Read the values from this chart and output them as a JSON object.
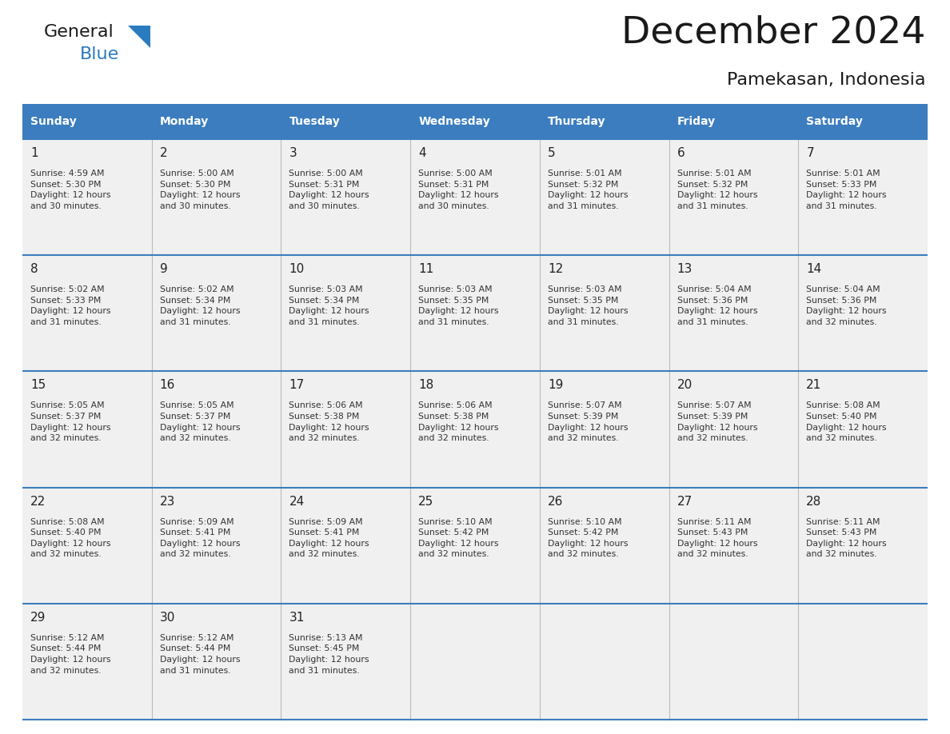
{
  "title": "December 2024",
  "subtitle": "Pamekasan, Indonesia",
  "header_bg_color": "#3B7DBF",
  "header_text_color": "#FFFFFF",
  "day_names": [
    "Sunday",
    "Monday",
    "Tuesday",
    "Wednesday",
    "Thursday",
    "Friday",
    "Saturday"
  ],
  "cell_border_color": "#3B7DBF",
  "cell_divider_color": "#AAAAAA",
  "bg_color": "#EFEFEF",
  "logo_black": "#1a1a1a",
  "logo_color": "#2B7BBF",
  "days": [
    {
      "day": 1,
      "col": 0,
      "row": 0,
      "sunrise": "4:59 AM",
      "sunset": "5:30 PM",
      "daylight": "12 hours and 30 minutes"
    },
    {
      "day": 2,
      "col": 1,
      "row": 0,
      "sunrise": "5:00 AM",
      "sunset": "5:30 PM",
      "daylight": "12 hours and 30 minutes"
    },
    {
      "day": 3,
      "col": 2,
      "row": 0,
      "sunrise": "5:00 AM",
      "sunset": "5:31 PM",
      "daylight": "12 hours and 30 minutes"
    },
    {
      "day": 4,
      "col": 3,
      "row": 0,
      "sunrise": "5:00 AM",
      "sunset": "5:31 PM",
      "daylight": "12 hours and 30 minutes"
    },
    {
      "day": 5,
      "col": 4,
      "row": 0,
      "sunrise": "5:01 AM",
      "sunset": "5:32 PM",
      "daylight": "12 hours and 31 minutes"
    },
    {
      "day": 6,
      "col": 5,
      "row": 0,
      "sunrise": "5:01 AM",
      "sunset": "5:32 PM",
      "daylight": "12 hours and 31 minutes"
    },
    {
      "day": 7,
      "col": 6,
      "row": 0,
      "sunrise": "5:01 AM",
      "sunset": "5:33 PM",
      "daylight": "12 hours and 31 minutes"
    },
    {
      "day": 8,
      "col": 0,
      "row": 1,
      "sunrise": "5:02 AM",
      "sunset": "5:33 PM",
      "daylight": "12 hours and 31 minutes"
    },
    {
      "day": 9,
      "col": 1,
      "row": 1,
      "sunrise": "5:02 AM",
      "sunset": "5:34 PM",
      "daylight": "12 hours and 31 minutes"
    },
    {
      "day": 10,
      "col": 2,
      "row": 1,
      "sunrise": "5:03 AM",
      "sunset": "5:34 PM",
      "daylight": "12 hours and 31 minutes"
    },
    {
      "day": 11,
      "col": 3,
      "row": 1,
      "sunrise": "5:03 AM",
      "sunset": "5:35 PM",
      "daylight": "12 hours and 31 minutes"
    },
    {
      "day": 12,
      "col": 4,
      "row": 1,
      "sunrise": "5:03 AM",
      "sunset": "5:35 PM",
      "daylight": "12 hours and 31 minutes"
    },
    {
      "day": 13,
      "col": 5,
      "row": 1,
      "sunrise": "5:04 AM",
      "sunset": "5:36 PM",
      "daylight": "12 hours and 31 minutes"
    },
    {
      "day": 14,
      "col": 6,
      "row": 1,
      "sunrise": "5:04 AM",
      "sunset": "5:36 PM",
      "daylight": "12 hours and 32 minutes"
    },
    {
      "day": 15,
      "col": 0,
      "row": 2,
      "sunrise": "5:05 AM",
      "sunset": "5:37 PM",
      "daylight": "12 hours and 32 minutes"
    },
    {
      "day": 16,
      "col": 1,
      "row": 2,
      "sunrise": "5:05 AM",
      "sunset": "5:37 PM",
      "daylight": "12 hours and 32 minutes"
    },
    {
      "day": 17,
      "col": 2,
      "row": 2,
      "sunrise": "5:06 AM",
      "sunset": "5:38 PM",
      "daylight": "12 hours and 32 minutes"
    },
    {
      "day": 18,
      "col": 3,
      "row": 2,
      "sunrise": "5:06 AM",
      "sunset": "5:38 PM",
      "daylight": "12 hours and 32 minutes"
    },
    {
      "day": 19,
      "col": 4,
      "row": 2,
      "sunrise": "5:07 AM",
      "sunset": "5:39 PM",
      "daylight": "12 hours and 32 minutes"
    },
    {
      "day": 20,
      "col": 5,
      "row": 2,
      "sunrise": "5:07 AM",
      "sunset": "5:39 PM",
      "daylight": "12 hours and 32 minutes"
    },
    {
      "day": 21,
      "col": 6,
      "row": 2,
      "sunrise": "5:08 AM",
      "sunset": "5:40 PM",
      "daylight": "12 hours and 32 minutes"
    },
    {
      "day": 22,
      "col": 0,
      "row": 3,
      "sunrise": "5:08 AM",
      "sunset": "5:40 PM",
      "daylight": "12 hours and 32 minutes"
    },
    {
      "day": 23,
      "col": 1,
      "row": 3,
      "sunrise": "5:09 AM",
      "sunset": "5:41 PM",
      "daylight": "12 hours and 32 minutes"
    },
    {
      "day": 24,
      "col": 2,
      "row": 3,
      "sunrise": "5:09 AM",
      "sunset": "5:41 PM",
      "daylight": "12 hours and 32 minutes"
    },
    {
      "day": 25,
      "col": 3,
      "row": 3,
      "sunrise": "5:10 AM",
      "sunset": "5:42 PM",
      "daylight": "12 hours and 32 minutes"
    },
    {
      "day": 26,
      "col": 4,
      "row": 3,
      "sunrise": "5:10 AM",
      "sunset": "5:42 PM",
      "daylight": "12 hours and 32 minutes"
    },
    {
      "day": 27,
      "col": 5,
      "row": 3,
      "sunrise": "5:11 AM",
      "sunset": "5:43 PM",
      "daylight": "12 hours and 32 minutes"
    },
    {
      "day": 28,
      "col": 6,
      "row": 3,
      "sunrise": "5:11 AM",
      "sunset": "5:43 PM",
      "daylight": "12 hours and 32 minutes"
    },
    {
      "day": 29,
      "col": 0,
      "row": 4,
      "sunrise": "5:12 AM",
      "sunset": "5:44 PM",
      "daylight": "12 hours and 32 minutes"
    },
    {
      "day": 30,
      "col": 1,
      "row": 4,
      "sunrise": "5:12 AM",
      "sunset": "5:44 PM",
      "daylight": "12 hours and 31 minutes"
    },
    {
      "day": 31,
      "col": 2,
      "row": 4,
      "sunrise": "5:13 AM",
      "sunset": "5:45 PM",
      "daylight": "12 hours and 31 minutes"
    }
  ]
}
